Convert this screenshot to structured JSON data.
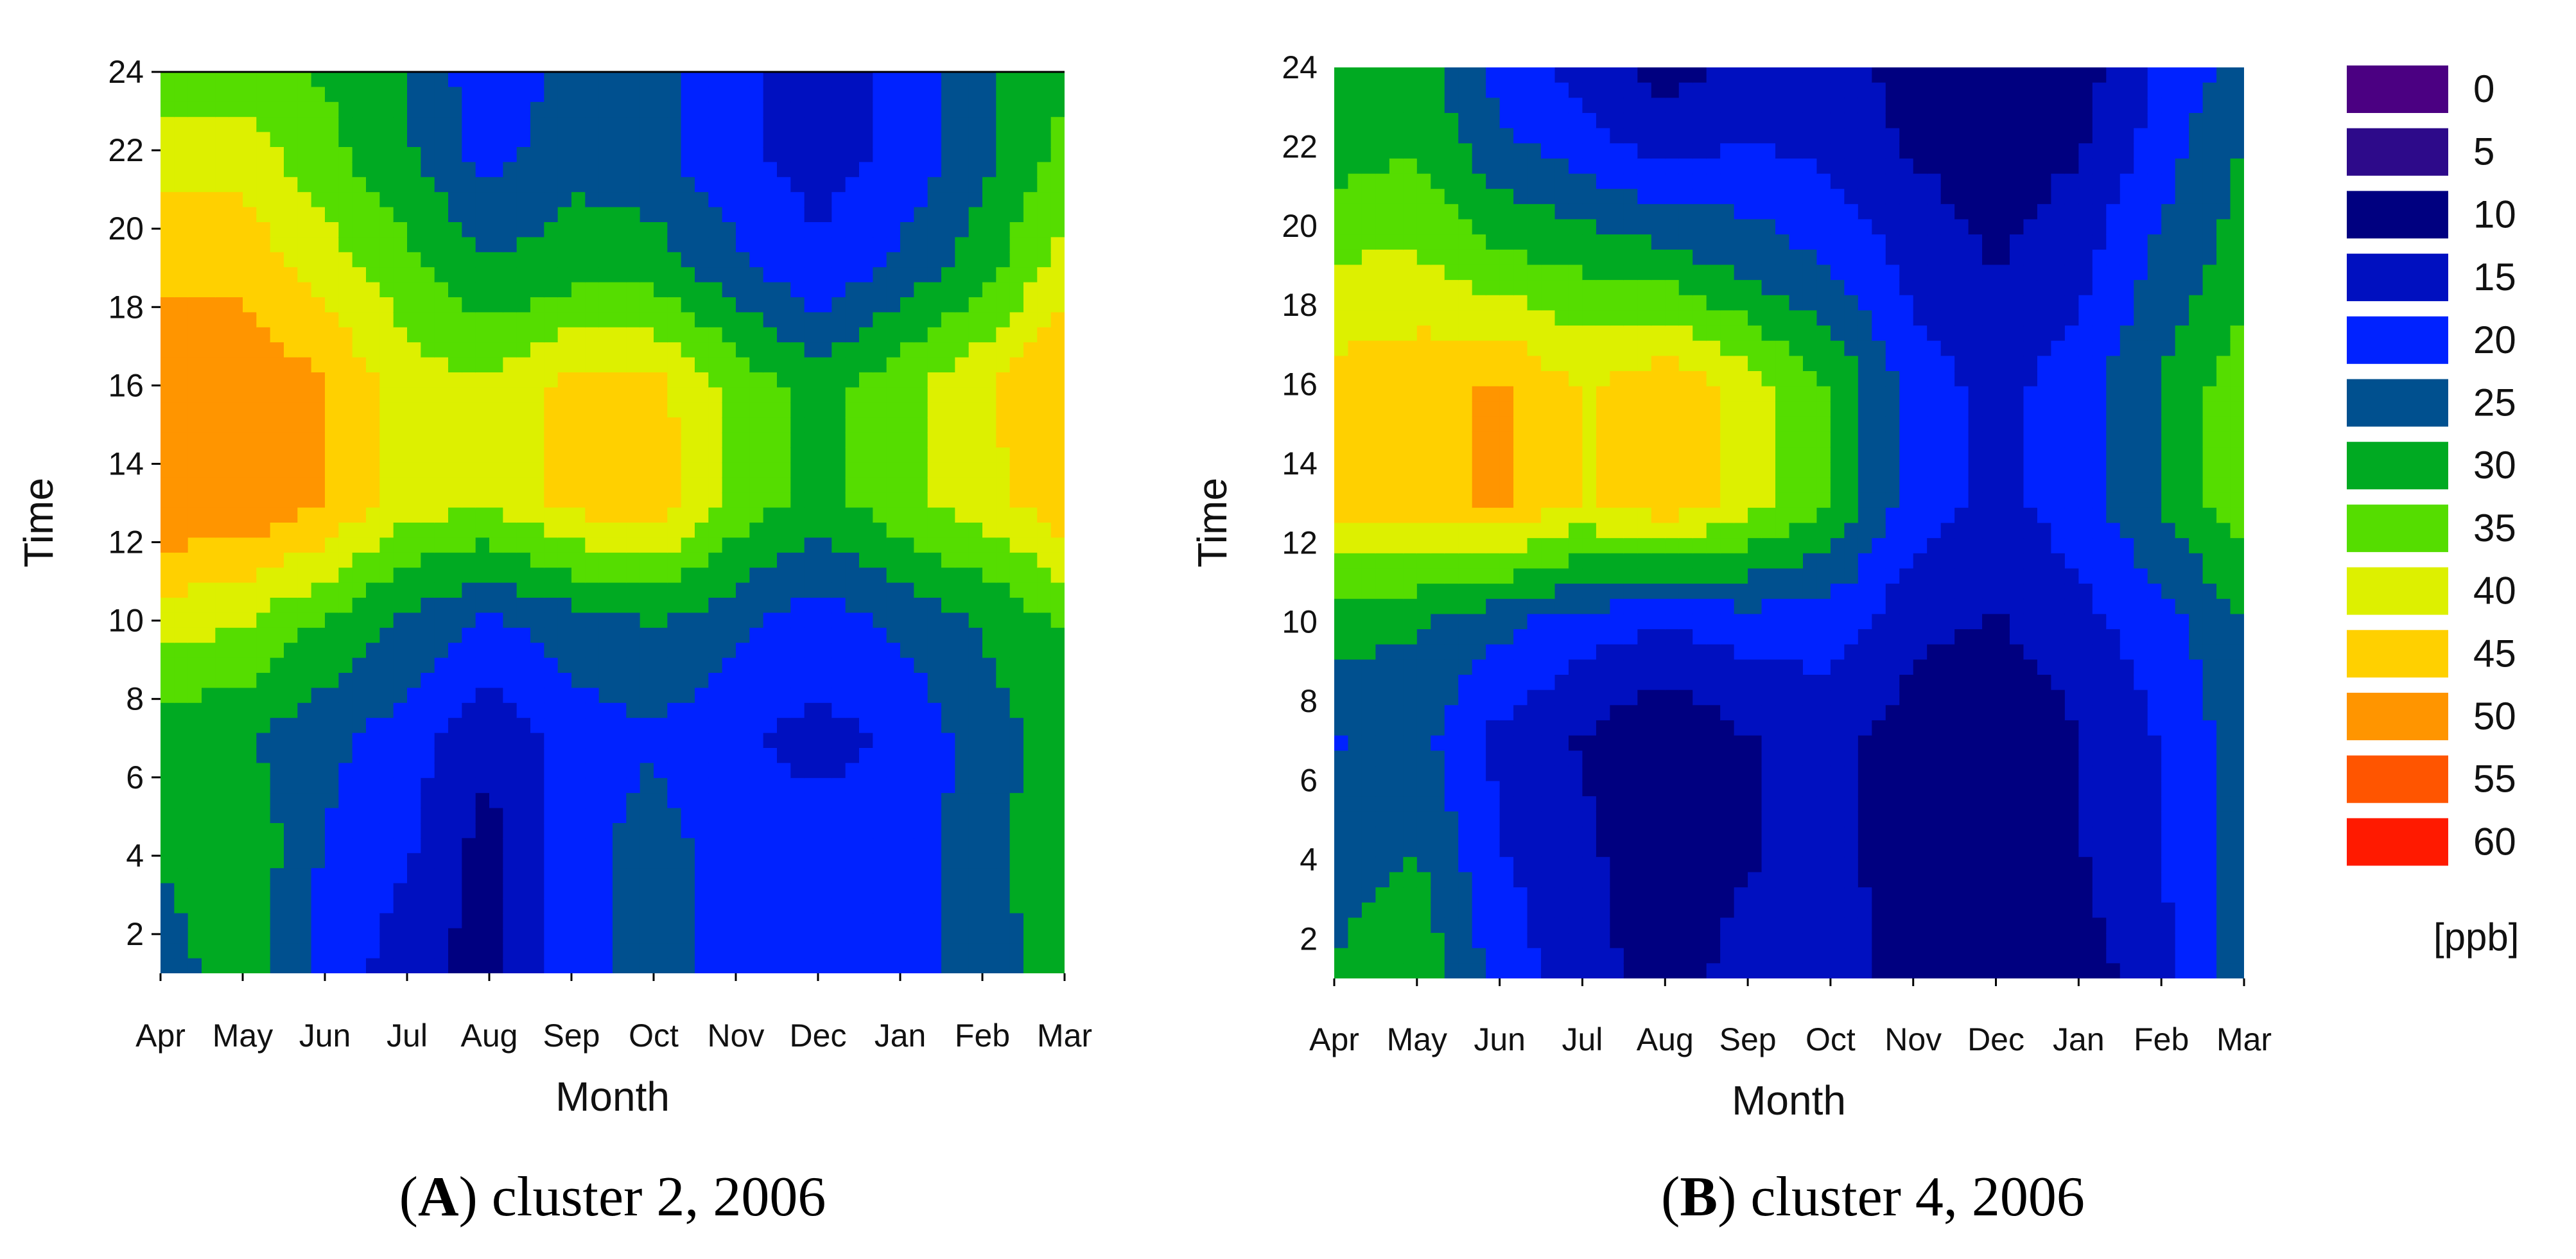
{
  "chart_data": [
    {
      "type": "heatmap",
      "panel_label": "A",
      "caption_text": ") cluster 2, 2006",
      "title": "",
      "xlabel": "Month",
      "ylabel": "Time",
      "x_categories": [
        "Apr",
        "May",
        "Jun",
        "Jul",
        "Aug",
        "Sep",
        "Oct",
        "Nov",
        "Dec",
        "Jan",
        "Feb",
        "Mar"
      ],
      "y_ticks": [
        2,
        4,
        6,
        8,
        10,
        12,
        14,
        16,
        18,
        20,
        22,
        24
      ],
      "ylim": [
        1,
        24
      ],
      "rows_hours": [
        1,
        4,
        7,
        10,
        13,
        16,
        19,
        22,
        24
      ],
      "values": [
        [
          25,
          30,
          20,
          15,
          10,
          20,
          25,
          20,
          20,
          20,
          25,
          30
        ],
        [
          28,
          32,
          22,
          18,
          10,
          20,
          25,
          20,
          20,
          20,
          25,
          32
        ],
        [
          30,
          28,
          24,
          20,
          14,
          20,
          22,
          18,
          16,
          18,
          25,
          30
        ],
        [
          40,
          38,
          32,
          26,
          22,
          25,
          28,
          24,
          20,
          24,
          28,
          33
        ],
        [
          52,
          52,
          48,
          40,
          38,
          44,
          46,
          36,
          30,
          36,
          40,
          46
        ],
        [
          52,
          52,
          48,
          40,
          38,
          44,
          44,
          36,
          30,
          36,
          42,
          48
        ],
        [
          46,
          46,
          40,
          34,
          28,
          30,
          30,
          24,
          18,
          24,
          30,
          40
        ],
        [
          40,
          40,
          34,
          28,
          20,
          26,
          24,
          18,
          16,
          18,
          26,
          34
        ],
        [
          35,
          35,
          32,
          28,
          18,
          25,
          25,
          18,
          16,
          18,
          26,
          32
        ]
      ]
    },
    {
      "type": "heatmap",
      "panel_label": "B",
      "caption_text": ") cluster 4, 2006",
      "title": "",
      "xlabel": "Month",
      "ylabel": "Time",
      "x_categories": [
        "Apr",
        "May",
        "Jun",
        "Jul",
        "Aug",
        "Sep",
        "Oct",
        "Nov",
        "Dec",
        "Jan",
        "Feb",
        "Mar"
      ],
      "y_ticks": [
        2,
        4,
        6,
        8,
        10,
        12,
        14,
        16,
        18,
        20,
        22,
        24
      ],
      "ylim": [
        1,
        24
      ],
      "rows_hours": [
        1,
        4,
        7,
        10,
        13,
        16,
        19,
        22,
        24
      ],
      "values": [
        [
          28,
          32,
          20,
          15,
          10,
          15,
          15,
          10,
          10,
          10,
          15,
          25
        ],
        [
          25,
          28,
          18,
          14,
          8,
          12,
          14,
          10,
          10,
          12,
          18,
          25
        ],
        [
          22,
          24,
          16,
          12,
          8,
          12,
          14,
          10,
          8,
          12,
          18,
          25
        ],
        [
          30,
          28,
          24,
          20,
          18,
          20,
          20,
          14,
          12,
          16,
          20,
          28
        ],
        [
          44,
          46,
          48,
          42,
          46,
          40,
          32,
          20,
          16,
          20,
          28,
          36
        ],
        [
          44,
          46,
          48,
          42,
          46,
          40,
          32,
          20,
          16,
          20,
          28,
          36
        ],
        [
          38,
          38,
          34,
          32,
          30,
          26,
          22,
          16,
          12,
          16,
          24,
          30
        ],
        [
          30,
          32,
          24,
          20,
          15,
          18,
          16,
          12,
          10,
          12,
          20,
          28
        ],
        [
          28,
          30,
          20,
          15,
          10,
          15,
          15,
          10,
          10,
          10,
          18,
          25
        ]
      ]
    }
  ],
  "legend": {
    "entries": [
      {
        "label": "0",
        "color": "#4b0082"
      },
      {
        "label": "5",
        "color": "#2d0a8a"
      },
      {
        "label": "10",
        "color": "#000080"
      },
      {
        "label": "15",
        "color": "#0010c0"
      },
      {
        "label": "20",
        "color": "#0022ff"
      },
      {
        "label": "25",
        "color": "#00508f"
      },
      {
        "label": "30",
        "color": "#00aa22"
      },
      {
        "label": "35",
        "color": "#55dd00"
      },
      {
        "label": "40",
        "color": "#ddf000"
      },
      {
        "label": "45",
        "color": "#ffd000"
      },
      {
        "label": "50",
        "color": "#ff9500"
      },
      {
        "label": "55",
        "color": "#ff5500"
      },
      {
        "label": "60",
        "color": "#ff1a00"
      }
    ],
    "unit": "[ppb]"
  }
}
